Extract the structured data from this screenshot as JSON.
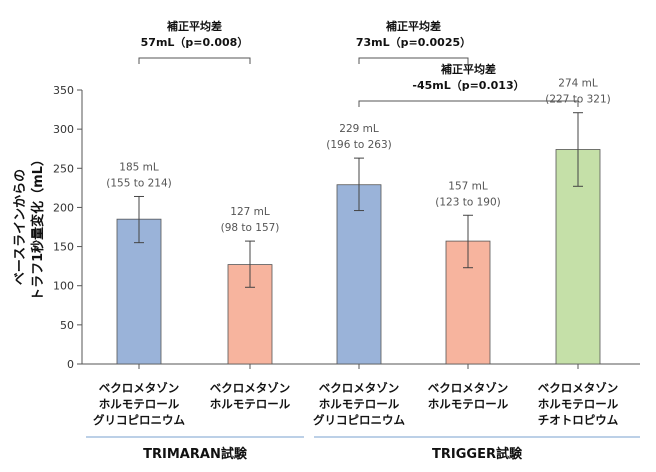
{
  "chart_data": {
    "type": "bar",
    "ylabel_lines": [
      "ベースラインからの",
      "トラフ1秒量変化（mL）"
    ],
    "yticks": [
      0,
      50,
      100,
      150,
      200,
      250,
      300,
      350
    ],
    "ylim": [
      0,
      350
    ],
    "categories": [
      [
        "ベクロメタゾン",
        "ホルモテロール",
        "グリコピロニウム"
      ],
      [
        "ベクロメタゾン",
        "ホルモテロール"
      ],
      [
        "ベクロメタゾン",
        "ホルモテロール",
        "グリコピロニウム"
      ],
      [
        "ベクロメタゾン",
        "ホルモテロール"
      ],
      [
        "ベクロメタゾン",
        "ホルモテロール",
        "チオトロピウム"
      ]
    ],
    "bars": [
      {
        "value": 185,
        "ci": [
          155,
          214
        ],
        "label": "185 mL",
        "ci_label": "(155 to 214)",
        "color": "#9ab3d9"
      },
      {
        "value": 127,
        "ci": [
          98,
          157
        ],
        "label": "127 mL",
        "ci_label": "(98 to 157)",
        "color": "#f7b49e"
      },
      {
        "value": 229,
        "ci": [
          196,
          263
        ],
        "label": "229 mL",
        "ci_label": "(196 to 263)",
        "color": "#9ab3d9"
      },
      {
        "value": 157,
        "ci": [
          123,
          190
        ],
        "label": "157 mL",
        "ci_label": "(123 to 190)",
        "color": "#f7b49e"
      },
      {
        "value": 274,
        "ci": [
          227,
          321
        ],
        "label": "274 mL",
        "ci_label": "(227 to 321)",
        "color": "#c5e0a8"
      }
    ],
    "comparisons": [
      {
        "from": 0,
        "to": 1,
        "title": "補正平均差",
        "text": "57mL（p=0.008）"
      },
      {
        "from": 2,
        "to": 3,
        "title": "補正平均差",
        "text": "73mL（p=0.0025）"
      },
      {
        "from": 2,
        "to": 4,
        "title": "補正平均差",
        "text": "-45mL（p=0.013）"
      }
    ],
    "groups": [
      {
        "label": "TRIMARAN試験",
        "bars": [
          0,
          1
        ]
      },
      {
        "label": "TRIGGER試験",
        "bars": [
          2,
          3,
          4
        ]
      }
    ]
  }
}
